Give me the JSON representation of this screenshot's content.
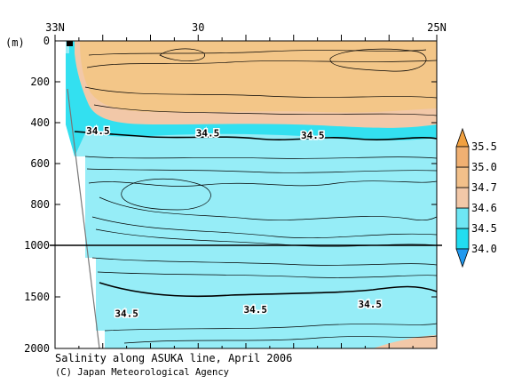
{
  "chart_data": {
    "type": "heatmap",
    "title": "Salinity along ASUKA line, April 2006",
    "credit": "(C) Japan Meteorological Agency",
    "y_unit_label": "(m)",
    "x_ticks": [
      {
        "lat": 33,
        "label": "33N"
      },
      {
        "lat": 30,
        "label": "30"
      },
      {
        "lat": 25,
        "label": "25N"
      }
    ],
    "x_range": [
      33,
      25
    ],
    "y_ticks_upper": [
      {
        "depth": 0,
        "label": "0"
      },
      {
        "depth": 200,
        "label": "200"
      },
      {
        "depth": 400,
        "label": "400"
      },
      {
        "depth": 600,
        "label": "600"
      },
      {
        "depth": 800,
        "label": "800"
      },
      {
        "depth": 1000,
        "label": "1000"
      }
    ],
    "y_ticks_lower": [
      {
        "depth": 1500,
        "label": "1500"
      },
      {
        "depth": 2000,
        "label": "2000"
      }
    ],
    "y_range_upper": [
      0,
      1000
    ],
    "y_range_lower": [
      1000,
      2000
    ],
    "scale_break_depth": 1000,
    "contour_labels": [
      {
        "lat": 32.1,
        "depth": 440,
        "text": "34.5"
      },
      {
        "lat": 29.8,
        "depth": 450,
        "text": "34.5"
      },
      {
        "lat": 27.6,
        "depth": 460,
        "text": "34.5"
      },
      {
        "lat": 31.5,
        "depth": 1660,
        "text": "34.5"
      },
      {
        "lat": 28.8,
        "depth": 1620,
        "text": "34.5"
      },
      {
        "lat": 26.4,
        "depth": 1570,
        "text": "34.5"
      }
    ],
    "colorbar": {
      "levels": [
        "34.0",
        "34.5",
        "34.6",
        "34.7",
        "35.0",
        "35.5"
      ],
      "fill_colors": [
        "#22ddf0",
        "#6ee6f4",
        "#f2c8a8",
        "#f2c08a",
        "#f0b072"
      ],
      "extend_low_color": "#2299ee",
      "extend_high_color": "#f0a040"
    },
    "colors": {
      "low_salinity_fill": "#33e0f0",
      "mid_salinity_fill": "#96edf7",
      "high_salinity_fill": "#f3c688",
      "transition_fill": "#f2c8a8",
      "contour_line": "#000000"
    }
  }
}
